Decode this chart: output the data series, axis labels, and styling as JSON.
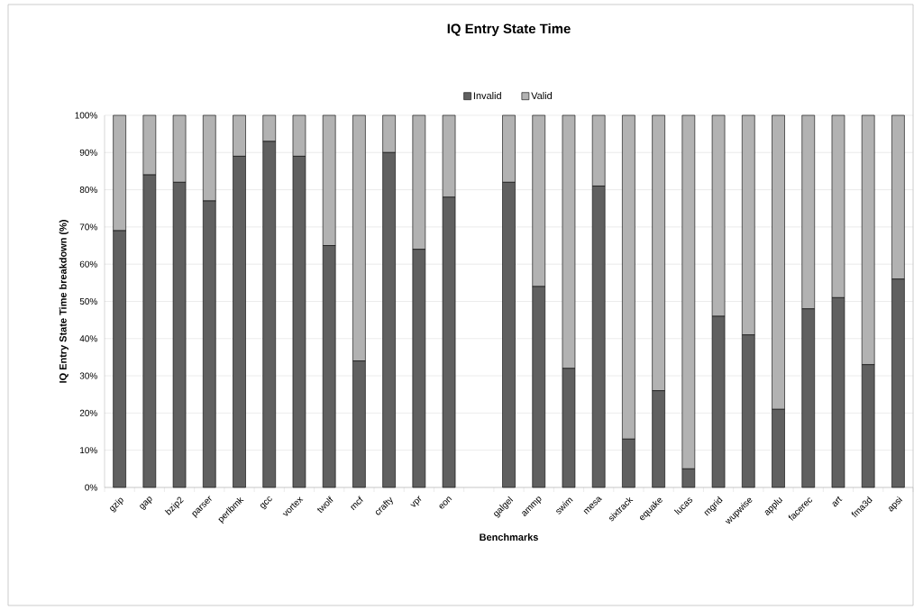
{
  "chart_data": {
    "type": "bar",
    "stacked": true,
    "title": "IQ Entry State Time",
    "xlabel": "Benchmarks",
    "ylabel": "IQ Entry State Time breakdown (%)",
    "categories": [
      "gzip",
      "gap",
      "bzip2",
      "parser",
      "perlbmk",
      "gcc",
      "vortex",
      "twolf",
      "mcf",
      "crafty",
      "vpr",
      "eon",
      null,
      "galgel",
      "ammp",
      "swim",
      "mesa",
      "sixtrack",
      "equake",
      "lucas",
      "mgrid",
      "wupwise",
      "applu",
      "facerec",
      "art",
      "fma3d",
      "apsi"
    ],
    "series": [
      {
        "name": "Invalid",
        "color": "#606060",
        "values": [
          69,
          84,
          82,
          77,
          89,
          93,
          89,
          65,
          34,
          90,
          64,
          78,
          null,
          82,
          54,
          32,
          81,
          13,
          26,
          5,
          46,
          41,
          21,
          48,
          51,
          33,
          56
        ]
      },
      {
        "name": "Valid",
        "color": "#b2b2b2",
        "values": [
          31,
          16,
          18,
          23,
          11,
          7,
          11,
          35,
          66,
          10,
          36,
          22,
          null,
          18,
          46,
          68,
          19,
          87,
          74,
          95,
          54,
          59,
          79,
          52,
          49,
          67,
          44
        ]
      }
    ],
    "ylim": [
      0,
      100
    ],
    "yticks": [
      {
        "value": 0,
        "label": "0%"
      },
      {
        "value": 10,
        "label": "10%"
      },
      {
        "value": 20,
        "label": "20%"
      },
      {
        "value": 30,
        "label": "30%"
      },
      {
        "value": 40,
        "label": "40%"
      },
      {
        "value": 50,
        "label": "50%"
      },
      {
        "value": 60,
        "label": "60%"
      },
      {
        "value": 70,
        "label": "70%"
      },
      {
        "value": 80,
        "label": "80%"
      },
      {
        "value": 90,
        "label": "90%"
      },
      {
        "value": 100,
        "label": "100%"
      }
    ],
    "grid": "y",
    "legend": "top"
  }
}
